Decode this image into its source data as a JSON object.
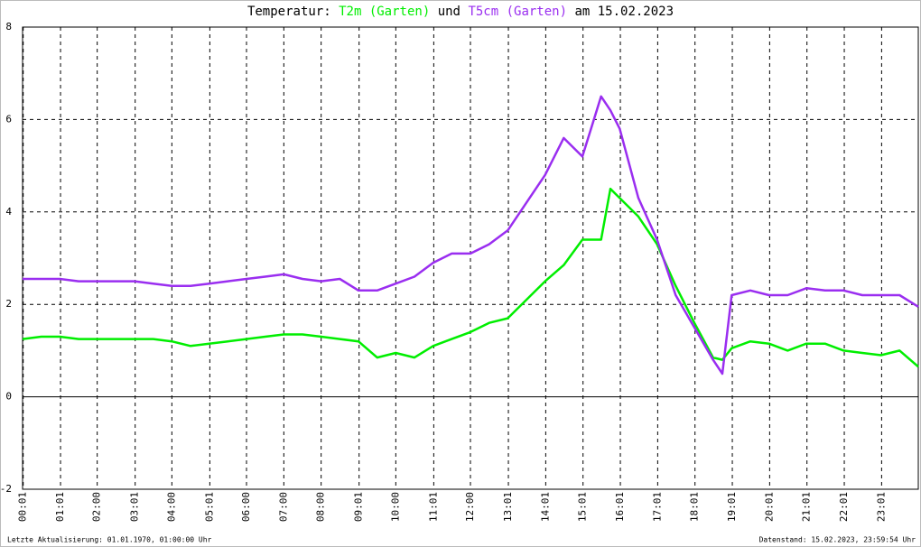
{
  "chart_data": {
    "type": "line",
    "title_prefix": "Temperatur:",
    "title_join": "und",
    "title_suffix": "am 15.02.2023",
    "footer_left": "Letzte Aktualisierung: 01.01.1970, 01:00:00 Uhr",
    "footer_right": "Datenstand: 15.02.2023, 23:59:54 Uhr",
    "x": [
      0,
      0.5,
      1,
      1.5,
      2,
      2.5,
      3,
      3.5,
      4,
      4.5,
      5,
      5.5,
      6,
      6.5,
      7,
      7.5,
      8,
      8.5,
      9,
      9.5,
      10,
      10.5,
      11,
      11.5,
      12,
      12.5,
      13,
      13.5,
      14,
      14.5,
      15,
      15.5,
      15.75,
      16,
      16.5,
      17,
      17.5,
      18,
      18.5,
      18.75,
      19,
      19.5,
      20,
      20.5,
      21,
      21.5,
      22,
      22.5,
      23,
      23.5,
      24
    ],
    "series": [
      {
        "name": "T2m (Garten)",
        "color": "#00ee00",
        "values": [
          1.25,
          1.3,
          1.3,
          1.25,
          1.25,
          1.25,
          1.25,
          1.25,
          1.2,
          1.1,
          1.15,
          1.2,
          1.25,
          1.3,
          1.35,
          1.35,
          1.3,
          1.25,
          1.2,
          0.85,
          0.95,
          0.85,
          1.1,
          1.25,
          1.4,
          1.6,
          1.7,
          2.1,
          2.5,
          2.85,
          3.4,
          3.4,
          4.5,
          4.3,
          3.9,
          3.3,
          2.4,
          1.6,
          0.85,
          0.8,
          1.05,
          1.2,
          1.15,
          1.0,
          1.15,
          1.15,
          1.0,
          0.95,
          0.9,
          1.0,
          0.65
        ]
      },
      {
        "name": "T5cm (Garten)",
        "color": "#9a2ef0",
        "values": [
          2.55,
          2.55,
          2.55,
          2.5,
          2.5,
          2.5,
          2.5,
          2.45,
          2.4,
          2.4,
          2.45,
          2.5,
          2.55,
          2.6,
          2.65,
          2.55,
          2.5,
          2.55,
          2.3,
          2.3,
          2.45,
          2.6,
          2.9,
          3.1,
          3.1,
          3.3,
          3.6,
          4.2,
          4.8,
          5.6,
          5.2,
          6.5,
          6.2,
          5.8,
          4.3,
          3.4,
          2.2,
          1.5,
          0.8,
          0.5,
          2.2,
          2.3,
          2.2,
          2.2,
          2.35,
          2.3,
          2.3,
          2.2,
          2.2,
          2.2,
          1.95
        ]
      }
    ],
    "xlim": [
      0,
      24
    ],
    "xticks": [
      {
        "value": 0.017,
        "label": "00:01"
      },
      {
        "value": 1.017,
        "label": "01:01"
      },
      {
        "value": 2,
        "label": "02:00"
      },
      {
        "value": 3.017,
        "label": "03:01"
      },
      {
        "value": 4,
        "label": "04:00"
      },
      {
        "value": 5.017,
        "label": "05:01"
      },
      {
        "value": 6,
        "label": "06:00"
      },
      {
        "value": 7,
        "label": "07:00"
      },
      {
        "value": 8,
        "label": "08:00"
      },
      {
        "value": 9.017,
        "label": "09:01"
      },
      {
        "value": 10,
        "label": "10:00"
      },
      {
        "value": 11.017,
        "label": "11:01"
      },
      {
        "value": 12,
        "label": "12:00"
      },
      {
        "value": 13.017,
        "label": "13:01"
      },
      {
        "value": 14.017,
        "label": "14:01"
      },
      {
        "value": 15.017,
        "label": "15:01"
      },
      {
        "value": 16.017,
        "label": "16:01"
      },
      {
        "value": 17.017,
        "label": "17:01"
      },
      {
        "value": 18.017,
        "label": "18:01"
      },
      {
        "value": 19.017,
        "label": "19:01"
      },
      {
        "value": 20.017,
        "label": "20:01"
      },
      {
        "value": 21.017,
        "label": "21:01"
      },
      {
        "value": 22.017,
        "label": "22:01"
      },
      {
        "value": 23.017,
        "label": "23:01"
      }
    ],
    "ylim": [
      -2,
      8
    ],
    "yticks": [
      -2,
      0,
      2,
      4,
      6,
      8
    ],
    "grid": true
  }
}
